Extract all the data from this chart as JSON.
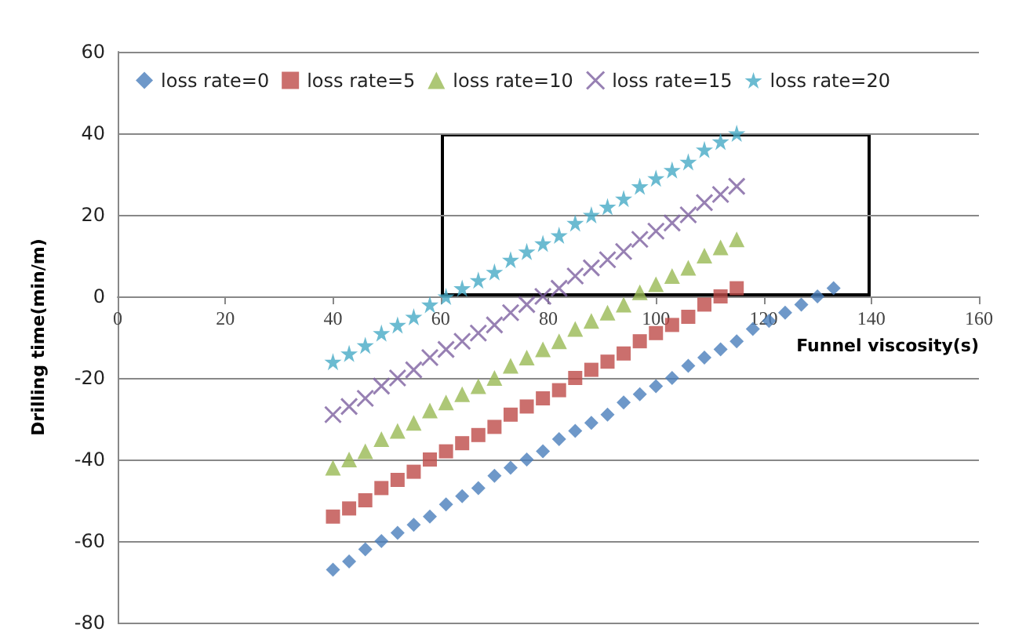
{
  "chart_data": {
    "type": "scatter",
    "xlabel": "Funnel viscosity(s)",
    "ylabel": "Drilling time(min/m)",
    "x": [
      40,
      43,
      46,
      49,
      52,
      55,
      58,
      61,
      64,
      67,
      70,
      73,
      76,
      79,
      82,
      85,
      88,
      91,
      94,
      97,
      100,
      103,
      106,
      109,
      112,
      115
    ],
    "xlim": [
      0,
      160
    ],
    "xticks": [
      0,
      20,
      40,
      60,
      80,
      100,
      120,
      140,
      160
    ],
    "ylim": [
      -80,
      60
    ],
    "yticks": [
      -80,
      -60,
      -40,
      -20,
      0,
      20,
      40,
      60
    ],
    "grid": "y",
    "legend": "top",
    "series": [
      {
        "name": "loss rate=0",
        "color": "#4a7ebb",
        "marker": "diamond",
        "x": [
          40,
          43,
          46,
          49,
          52,
          55,
          58,
          61,
          64,
          67,
          70,
          73,
          76,
          79,
          82,
          85,
          88,
          91,
          94,
          97,
          100,
          103,
          106,
          109,
          112,
          115,
          118,
          121,
          124,
          127,
          130,
          133
        ],
        "values": [
          -67,
          -65,
          -62,
          -60,
          -58,
          -56,
          -54,
          -51,
          -49,
          -47,
          -44,
          -42,
          -40,
          -38,
          -35,
          -33,
          -31,
          -29,
          -26,
          -24,
          -22,
          -20,
          -17,
          -15,
          -13,
          -11,
          -8,
          -6,
          -4,
          -2,
          0,
          2
        ]
      },
      {
        "name": "loss rate=5",
        "color": "#be4b48",
        "marker": "square",
        "values": [
          -54,
          -52,
          -50,
          -47,
          -45,
          -43,
          -40,
          -38,
          -36,
          -34,
          -32,
          -29,
          -27,
          -25,
          -23,
          -20,
          -18,
          -16,
          -14,
          -11,
          -9,
          -7,
          -5,
          -2,
          0,
          2
        ]
      },
      {
        "name": "loss rate=10",
        "color": "#98b954",
        "marker": "triangle",
        "values": [
          -42,
          -40,
          -38,
          -35,
          -33,
          -31,
          -28,
          -26,
          -24,
          -22,
          -20,
          -17,
          -15,
          -13,
          -11,
          -8,
          -6,
          -4,
          -2,
          1,
          3,
          5,
          7,
          10,
          12,
          14
        ]
      },
      {
        "name": "loss rate=15",
        "color": "#7d60a0",
        "marker": "cross",
        "values": [
          -29,
          -27,
          -25,
          -22,
          -20,
          -18,
          -15,
          -13,
          -11,
          -9,
          -7,
          -4,
          -2,
          0,
          2,
          5,
          7,
          9,
          11,
          14,
          16,
          18,
          20,
          23,
          25,
          27
        ]
      },
      {
        "name": "loss rate=20",
        "color": "#46aac5",
        "marker": "star",
        "values": [
          -16,
          -14,
          -12,
          -9,
          -7,
          -5,
          -2,
          0,
          2,
          4,
          6,
          9,
          11,
          13,
          15,
          18,
          20,
          22,
          24,
          27,
          29,
          31,
          33,
          36,
          38,
          40
        ]
      }
    ]
  }
}
